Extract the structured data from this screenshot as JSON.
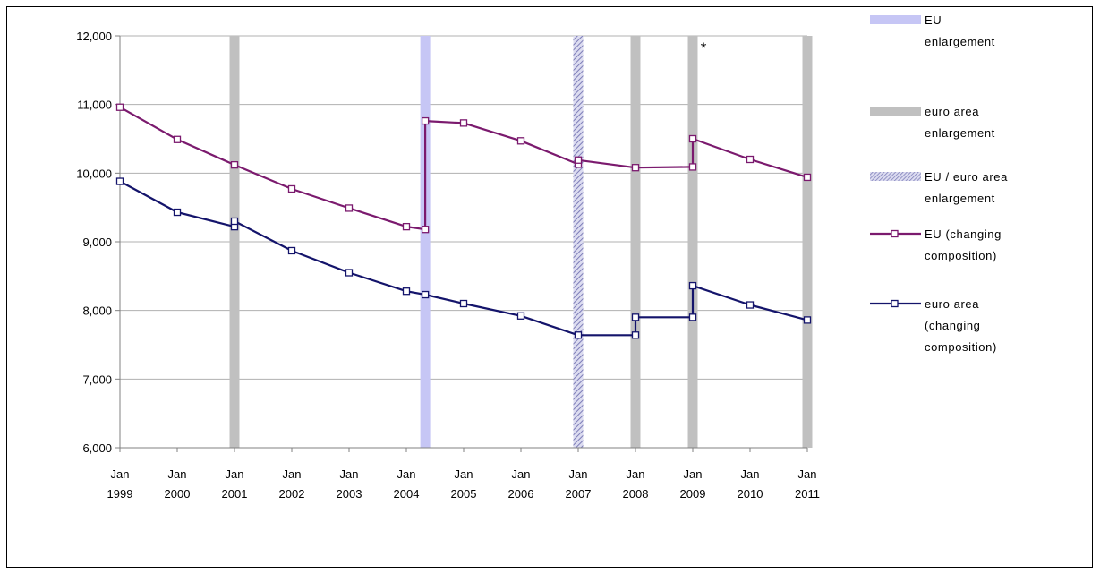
{
  "chart_data": {
    "type": "line",
    "x_ticks": [
      {
        "month": "Jan",
        "year": "1999"
      },
      {
        "month": "Jan",
        "year": "2000"
      },
      {
        "month": "Jan",
        "year": "2001"
      },
      {
        "month": "Jan",
        "year": "2002"
      },
      {
        "month": "Jan",
        "year": "2003"
      },
      {
        "month": "Jan",
        "year": "2004"
      },
      {
        "month": "Jan",
        "year": "2005"
      },
      {
        "month": "Jan",
        "year": "2006"
      },
      {
        "month": "Jan",
        "year": "2007"
      },
      {
        "month": "Jan",
        "year": "2008"
      },
      {
        "month": "Jan",
        "year": "2009"
      },
      {
        "month": "Jan",
        "year": "2010"
      },
      {
        "month": "Jan",
        "year": "2011"
      }
    ],
    "xlim": [
      1999,
      2011
    ],
    "ylim": [
      6000,
      12000
    ],
    "y_ticks": [
      "6,000",
      "7,000",
      "8,000",
      "9,000",
      "10,000",
      "11,000",
      "12,000"
    ],
    "y_tick_values": [
      6000,
      7000,
      8000,
      9000,
      10000,
      11000,
      12000
    ],
    "grid": "horizontal",
    "legend_placement": "right",
    "annotation": "*",
    "bands": [
      {
        "x": 2001.0,
        "kind": "euro_area",
        "color": "#c0c0c0"
      },
      {
        "x": 2004.33,
        "kind": "eu",
        "color": "#c6c6f5"
      },
      {
        "x": 2007.0,
        "kind": "both",
        "color": "#9a9ac8"
      },
      {
        "x": 2008.0,
        "kind": "euro_area",
        "color": "#c0c0c0"
      },
      {
        "x": 2009.0,
        "kind": "euro_area",
        "color": "#c0c0c0"
      },
      {
        "x": 2011.0,
        "kind": "euro_area",
        "color": "#c0c0c0"
      }
    ],
    "series": [
      {
        "name": "EU (changing composition)",
        "color": "#7b1a6e",
        "points": [
          [
            1999.0,
            10960
          ],
          [
            2000.0,
            10490
          ],
          [
            2001.0,
            10120
          ],
          [
            2002.0,
            9770
          ],
          [
            2003.0,
            9490
          ],
          [
            2004.0,
            9220
          ],
          [
            2004.33,
            9180
          ],
          [
            2004.33,
            10760
          ],
          [
            2005.0,
            10730
          ],
          [
            2006.0,
            10470
          ],
          [
            2007.0,
            10130
          ],
          [
            2007.0,
            10190
          ],
          [
            2008.0,
            10080
          ],
          [
            2009.0,
            10090
          ],
          [
            2009.0,
            10500
          ],
          [
            2010.0,
            10200
          ],
          [
            2011.0,
            9940
          ]
        ]
      },
      {
        "name": "euro area (changing composition)",
        "color": "#14146b",
        "points": [
          [
            1999.0,
            9880
          ],
          [
            2000.0,
            9430
          ],
          [
            2001.0,
            9220
          ],
          [
            2001.0,
            9300
          ],
          [
            2002.0,
            8870
          ],
          [
            2003.0,
            8550
          ],
          [
            2004.0,
            8280
          ],
          [
            2004.33,
            8230
          ],
          [
            2005.0,
            8100
          ],
          [
            2006.0,
            7920
          ],
          [
            2007.0,
            7640
          ],
          [
            2008.0,
            7640
          ],
          [
            2008.0,
            7900
          ],
          [
            2009.0,
            7900
          ],
          [
            2009.0,
            8360
          ],
          [
            2010.0,
            8080
          ],
          [
            2011.0,
            7860
          ]
        ]
      }
    ],
    "legend": [
      {
        "kind": "band",
        "color": "#c6c6f5",
        "lines": [
          "EU",
          "enlargement"
        ]
      },
      {
        "kind": "band",
        "color": "#c0c0c0",
        "lines": [
          "euro area",
          "enlargement"
        ]
      },
      {
        "kind": "hatch",
        "color": "#9a9ac8",
        "lines": [
          "EU / euro area",
          "enlargement"
        ]
      },
      {
        "kind": "line",
        "color": "#7b1a6e",
        "lines": [
          "EU (changing",
          "composition)"
        ]
      },
      {
        "kind": "line",
        "color": "#14146b",
        "lines": [
          "euro area",
          "(changing",
          "composition)"
        ]
      }
    ]
  }
}
